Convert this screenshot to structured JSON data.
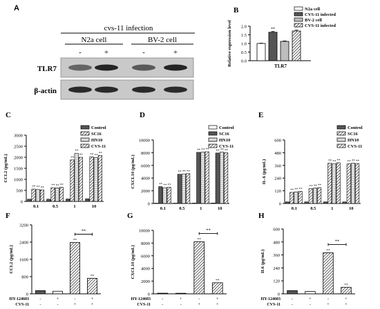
{
  "colors": {
    "ink": "#000000",
    "blot_bg": "#c9c9c9",
    "band": "#1e1e1e",
    "light_fill": "#ffffff",
    "dark_fill": "#555555",
    "mid_fill": "#bdbdbd"
  },
  "panel_a": {
    "label": "A",
    "title": "cvs-11 infection",
    "groups": [
      "N2a cell",
      "BV-2 cell"
    ],
    "lane_signs": [
      "-",
      "+",
      "-",
      "+"
    ],
    "rows": [
      "TLR7",
      "β-actin"
    ],
    "band_intensity": {
      "TLR7": [
        0.45,
        0.95,
        0.55,
        0.95
      ],
      "β-actin": [
        0.9,
        0.9,
        0.9,
        0.9
      ]
    }
  },
  "chart_data": [
    {
      "id": "B",
      "type": "bar",
      "label": "B",
      "ylabel": "Relative expression level",
      "categories": [
        "TLR7"
      ],
      "series": [
        {
          "name": "N2a cell",
          "values": [
            1.0
          ],
          "errors": [
            0.02
          ],
          "fill": "white"
        },
        {
          "name": "CVS-11 infected",
          "values": [
            1.65
          ],
          "errors": [
            0.05
          ],
          "fill": "dark"
        },
        {
          "name": "BV-2 cell",
          "values": [
            1.12
          ],
          "errors": [
            0.03
          ],
          "fill": "mid"
        },
        {
          "name": "CVS-11 infected",
          "values": [
            1.72
          ],
          "errors": [
            0.06
          ],
          "fill": "hatch"
        }
      ],
      "annotations": [
        "",
        "**",
        "",
        "**"
      ],
      "ylim": [
        0,
        2.0
      ],
      "yticks": [
        "0.0",
        "0.5",
        "1.0",
        "1.5",
        "2.0"
      ],
      "legend": "top-right"
    },
    {
      "id": "C",
      "type": "bar",
      "label": "C",
      "ylabel": "CCL2 (pg/mL)",
      "categories": [
        "0.1",
        "0.5",
        "1",
        "10"
      ],
      "series": [
        {
          "name": "Control",
          "values": [
            100,
            100,
            110,
            120
          ],
          "fill": "dark"
        },
        {
          "name": "SC16",
          "values": [
            560,
            620,
            1880,
            2020
          ],
          "fill": "hatch"
        },
        {
          "name": "HN10",
          "values": [
            540,
            610,
            2180,
            1990
          ],
          "fill": "light"
        },
        {
          "name": "CVS-11",
          "values": [
            520,
            640,
            2000,
            2080
          ],
          "fill": "hatch"
        }
      ],
      "star_labels": [
        "",
        "**",
        "**",
        "**"
      ],
      "ylim": [
        0,
        3000
      ],
      "yticks": [
        "0",
        "500",
        "1000",
        "1500",
        "2000",
        "2500",
        "3000"
      ],
      "legend": "top-right"
    },
    {
      "id": "D",
      "type": "bar",
      "label": "D",
      "ylabel": "CXCL10 (pg/mL)",
      "categories": [
        "0.1",
        "0.5",
        "1",
        "10"
      ],
      "series": [
        {
          "name": "Control",
          "values": [
            50,
            50,
            60,
            70
          ],
          "fill": "white"
        },
        {
          "name": "SC16",
          "values": [
            2650,
            4600,
            8050,
            7950
          ],
          "fill": "dark"
        },
        {
          "name": "HN10",
          "values": [
            2500,
            4650,
            8100,
            8100
          ],
          "fill": "light"
        },
        {
          "name": "CVS-11",
          "values": [
            2550,
            4700,
            8150,
            8000
          ],
          "fill": "hatch"
        }
      ],
      "star_labels": [
        "",
        "**",
        "**",
        "**"
      ],
      "ylim": [
        0,
        10000
      ],
      "yticks": [
        "0",
        "2000",
        "4000",
        "6000",
        "8000",
        "10000"
      ],
      "legend": "top-right"
    },
    {
      "id": "E",
      "type": "bar",
      "label": "E",
      "ylabel": "IL-6 (pg/mL)",
      "categories": [
        "0.1",
        "0.5",
        "1",
        "10"
      ],
      "series": [
        {
          "name": "Control",
          "values": [
            15,
            15,
            15,
            15
          ],
          "fill": "dark"
        },
        {
          "name": "SC16",
          "values": [
            105,
            140,
            380,
            375
          ],
          "fill": "hatch"
        },
        {
          "name": "HN10",
          "values": [
            110,
            145,
            375,
            380
          ],
          "fill": "light"
        },
        {
          "name": "CVS-11",
          "values": [
            115,
            150,
            385,
            378
          ],
          "fill": "hatch"
        }
      ],
      "star_labels": [
        "",
        "**",
        "**",
        "**"
      ],
      "ylim": [
        0,
        600
      ],
      "yticks": [
        "0",
        "120",
        "240",
        "360",
        "480",
        "600"
      ],
      "legend": "top-right"
    },
    {
      "id": "F",
      "type": "bar",
      "label": "F",
      "ylabel": "CCL2 (pg/mL)",
      "values": [
        150,
        120,
        2380,
        720
      ],
      "fills": [
        "dark",
        "white",
        "hatch",
        "hatch"
      ],
      "annotations": [
        "",
        "",
        "**",
        "**"
      ],
      "ylim": [
        0,
        3200
      ],
      "yticks": [
        "0",
        "800",
        "1600",
        "2400",
        "3200"
      ],
      "rows": [
        {
          "name": "HY-124603",
          "signs": [
            "-",
            "+",
            "-",
            "+"
          ]
        },
        {
          "name": "CVS-11",
          "signs": [
            "-",
            "-",
            "+",
            "+"
          ]
        }
      ],
      "bracket": {
        "from": 2,
        "to": 3,
        "text": "**"
      }
    },
    {
      "id": "G",
      "type": "bar",
      "label": "G",
      "ylabel": "CXCL10 (pg/mL)",
      "values": [
        100,
        90,
        8200,
        1750
      ],
      "fills": [
        "dark",
        "white",
        "hatch",
        "hatch"
      ],
      "annotations": [
        "",
        "",
        "**",
        "**"
      ],
      "ylim": [
        0,
        10000
      ],
      "yticks": [
        "0",
        "2000",
        "4000",
        "6000",
        "8000",
        "10000"
      ],
      "rows": [
        {
          "name": "HY-124603",
          "signs": [
            "-",
            "+",
            "-",
            "+"
          ]
        },
        {
          "name": "CVS-11",
          "signs": [
            "-",
            "-",
            "+",
            "+"
          ]
        }
      ],
      "bracket": {
        "from": 2,
        "to": 3,
        "text": "**"
      }
    },
    {
      "id": "H",
      "type": "bar",
      "label": "H",
      "ylabel": "IL6 (pg/mL)",
      "values": [
        30,
        22,
        380,
        60
      ],
      "fills": [
        "dark",
        "white",
        "hatch",
        "hatch"
      ],
      "annotations": [
        "",
        "",
        "**",
        "**"
      ],
      "ylim": [
        0,
        600
      ],
      "yticks": [
        "0",
        "120",
        "240",
        "360",
        "480",
        "600"
      ],
      "rows": [
        {
          "name": "HY-124603",
          "signs": [
            "-",
            "+",
            "-",
            "+"
          ]
        },
        {
          "name": "CVS-11",
          "signs": [
            "-",
            "-",
            "+",
            "+"
          ]
        }
      ],
      "bracket": {
        "from": 2,
        "to": 3,
        "text": "**"
      }
    }
  ]
}
